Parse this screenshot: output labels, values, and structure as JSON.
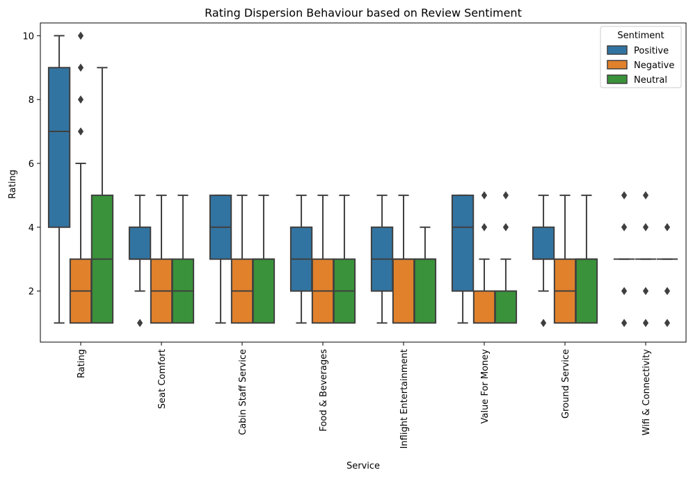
{
  "chart_data": {
    "type": "box",
    "title": "Rating Dispersion Behaviour based on Review Sentiment",
    "xlabel": "Service",
    "ylabel": "Rating",
    "ylim": [
      0.4,
      10.4
    ],
    "yticks": [
      2,
      4,
      6,
      8,
      10
    ],
    "grid": false,
    "legend": {
      "title": "Sentiment",
      "placement": "top-right"
    },
    "colors": {
      "Positive": "#3274a1",
      "Negative": "#e1812c",
      "Neutral": "#3a923a",
      "line": "#3f3f3f"
    },
    "categories": [
      "Rating",
      "Seat Comfort",
      "Cabin Staff Service",
      "Food & Beverages",
      "Inflight Entertainment",
      "Value For Money",
      "Ground Service",
      "Wifi & Connectivity"
    ],
    "series": [
      {
        "name": "Positive",
        "boxes": [
          {
            "whislo": 1,
            "q1": 4,
            "med": 7,
            "q3": 9,
            "whishi": 10,
            "fliers": []
          },
          {
            "whislo": 2,
            "q1": 3,
            "med": 3,
            "q3": 4,
            "whishi": 5,
            "fliers": [
              1
            ]
          },
          {
            "whislo": 1,
            "q1": 3,
            "med": 4,
            "q3": 5,
            "whishi": 5,
            "fliers": []
          },
          {
            "whislo": 1,
            "q1": 2,
            "med": 3,
            "q3": 4,
            "whishi": 5,
            "fliers": []
          },
          {
            "whislo": 1,
            "q1": 2,
            "med": 3,
            "q3": 4,
            "whishi": 5,
            "fliers": []
          },
          {
            "whislo": 1,
            "q1": 2,
            "med": 4,
            "q3": 5,
            "whishi": 5,
            "fliers": []
          },
          {
            "whislo": 2,
            "q1": 3,
            "med": 3,
            "q3": 4,
            "whishi": 5,
            "fliers": [
              1
            ]
          },
          {
            "whislo": 3,
            "q1": 3,
            "med": 3,
            "q3": 3,
            "whishi": 3,
            "fliers": [
              1,
              2,
              4,
              5
            ]
          }
        ]
      },
      {
        "name": "Negative",
        "boxes": [
          {
            "whislo": 1,
            "q1": 1,
            "med": 2,
            "q3": 3,
            "whishi": 6,
            "fliers": [
              7,
              8,
              9,
              10
            ]
          },
          {
            "whislo": 1,
            "q1": 1,
            "med": 2,
            "q3": 3,
            "whishi": 5,
            "fliers": []
          },
          {
            "whislo": 1,
            "q1": 1,
            "med": 2,
            "q3": 3,
            "whishi": 5,
            "fliers": []
          },
          {
            "whislo": 1,
            "q1": 1,
            "med": 2,
            "q3": 3,
            "whishi": 5,
            "fliers": []
          },
          {
            "whislo": 1,
            "q1": 1,
            "med": 3,
            "q3": 3,
            "whishi": 5,
            "fliers": []
          },
          {
            "whislo": 1,
            "q1": 1,
            "med": 1,
            "q3": 2,
            "whishi": 3,
            "fliers": [
              4,
              5
            ]
          },
          {
            "whislo": 1,
            "q1": 1,
            "med": 2,
            "q3": 3,
            "whishi": 5,
            "fliers": []
          },
          {
            "whislo": 3,
            "q1": 3,
            "med": 3,
            "q3": 3,
            "whishi": 3,
            "fliers": [
              1,
              2,
              4,
              5
            ]
          }
        ]
      },
      {
        "name": "Neutral",
        "boxes": [
          {
            "whislo": 1,
            "q1": 1,
            "med": 3,
            "q3": 5,
            "whishi": 9,
            "fliers": []
          },
          {
            "whislo": 1,
            "q1": 1,
            "med": 2,
            "q3": 3,
            "whishi": 5,
            "fliers": []
          },
          {
            "whislo": 1,
            "q1": 1,
            "med": 3,
            "q3": 3,
            "whishi": 5,
            "fliers": []
          },
          {
            "whislo": 1,
            "q1": 1,
            "med": 2,
            "q3": 3,
            "whishi": 5,
            "fliers": []
          },
          {
            "whislo": 1,
            "q1": 1,
            "med": 3,
            "q3": 3,
            "whishi": 4,
            "fliers": []
          },
          {
            "whislo": 1,
            "q1": 1,
            "med": 1,
            "q3": 2,
            "whishi": 3,
            "fliers": [
              4,
              5
            ]
          },
          {
            "whislo": 1,
            "q1": 1,
            "med": 3,
            "q3": 3,
            "whishi": 5,
            "fliers": []
          },
          {
            "whislo": 3,
            "q1": 3,
            "med": 3,
            "q3": 3,
            "whishi": 3,
            "fliers": [
              1,
              2,
              4
            ]
          }
        ]
      }
    ]
  }
}
